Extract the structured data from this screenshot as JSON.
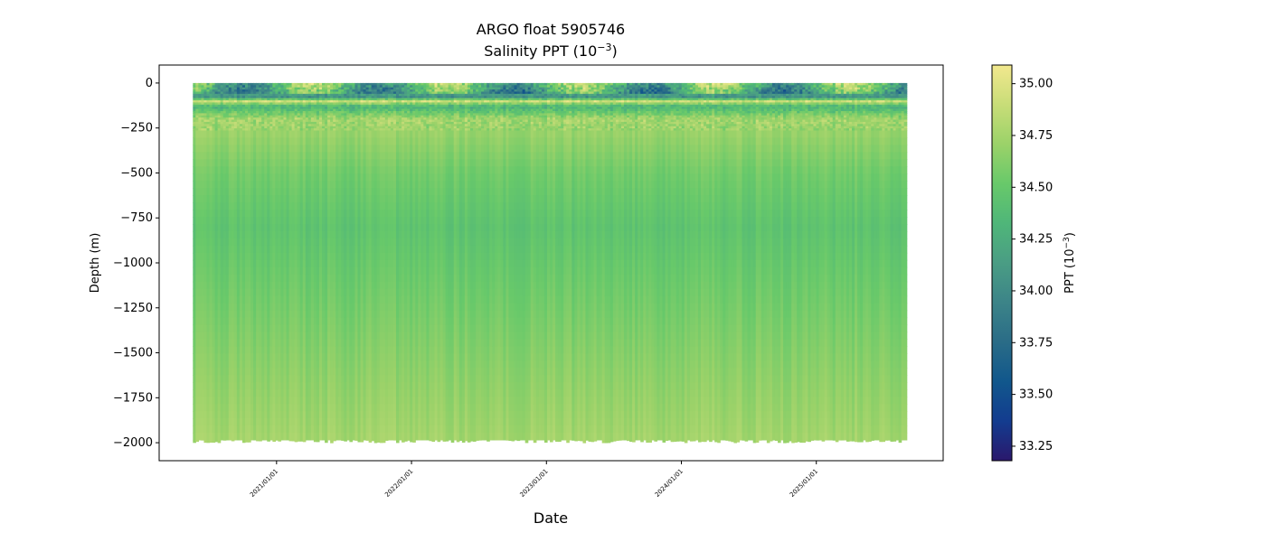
{
  "chart_data": {
    "type": "heatmap",
    "title": "ARGO float 5905746",
    "subtitle": "Salinity PPT (10",
    "subtitle_sup": "−3",
    "subtitle_end": ")",
    "xlabel": "Date",
    "ylabel": "Depth (m)",
    "x_ticks": [
      "2021/01/01",
      "2022/01/01",
      "2023/01/01",
      "2024/01/01",
      "2025/01/01"
    ],
    "x_tick_years": [
      2021,
      2022,
      2023,
      2024,
      2025
    ],
    "xlim_years": [
      2020.13,
      2025.94
    ],
    "data_x_range_years": [
      2020.38,
      2025.67
    ],
    "ylim": [
      -2100,
      100
    ],
    "y_ticks": [
      0,
      -250,
      -500,
      -750,
      -1000,
      -1250,
      -1500,
      -1750,
      -2000
    ],
    "y_tick_labels": [
      "0",
      "−250",
      "−500",
      "−750",
      "−1000",
      "−1250",
      "−1500",
      "−1750",
      "−2000"
    ],
    "colorbar": {
      "label": "PPT (10",
      "label_sup": "−3",
      "label_end": ")",
      "range": [
        33.18,
        35.09
      ],
      "ticks": [
        33.25,
        33.5,
        33.75,
        34.0,
        34.25,
        34.5,
        34.75,
        35.0
      ],
      "tick_labels": [
        "33.25",
        "33.50",
        "33.75",
        "34.00",
        "34.25",
        "34.50",
        "34.75",
        "35.00"
      ],
      "colormap": "haline",
      "stops": [
        "#2a186c",
        "#133c8f",
        "#11578c",
        "#2a6c87",
        "#3c8488",
        "#4a9d84",
        "#4fb679",
        "#68c96a",
        "#9bd269",
        "#c8dd78",
        "#f2e88e"
      ]
    },
    "profile": {
      "depths": [
        0,
        -80,
        -100,
        -130,
        -200,
        -500,
        -800,
        -1200,
        -1600,
        -1900,
        -2000
      ],
      "values": [
        34.45,
        34.05,
        34.95,
        34.3,
        34.75,
        34.55,
        34.45,
        34.55,
        34.65,
        34.72,
        34.75
      ]
    },
    "grid": false,
    "legend": "colorbar-right"
  }
}
